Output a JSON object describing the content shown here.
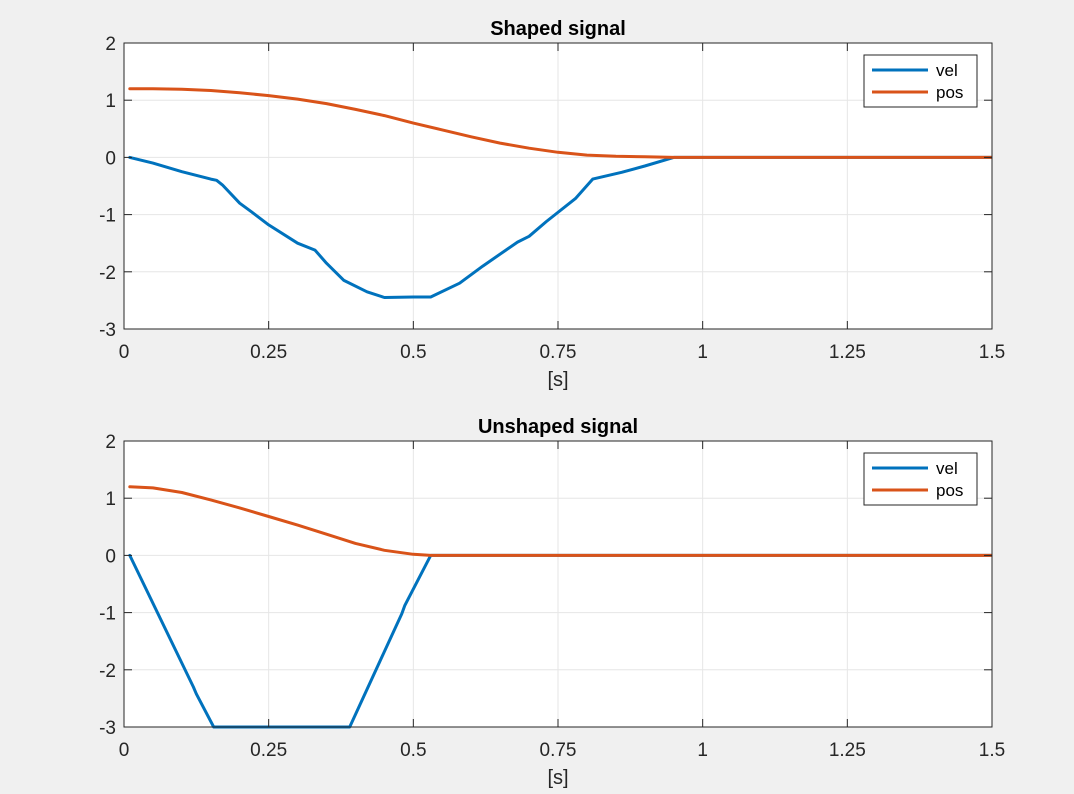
{
  "figure": {
    "background": "#f0f0f0"
  },
  "colors": {
    "vel": "#0072bd",
    "pos": "#d95319",
    "grid": "#e6e6e6",
    "axes": "#262626"
  },
  "chart_data": [
    {
      "type": "line",
      "title": "Shaped signal",
      "xlabel": "[s]",
      "ylabel": "",
      "xlim": [
        0,
        1.5
      ],
      "ylim": [
        -3,
        2
      ],
      "xticks": [
        0,
        0.25,
        0.5,
        0.75,
        1,
        1.25,
        1.5
      ],
      "xtick_labels": [
        "0",
        "0.25",
        "0.5",
        "0.75",
        "1",
        "1.25",
        "1.5"
      ],
      "yticks": [
        -3,
        -2,
        -1,
        0,
        1,
        2
      ],
      "ytick_labels": [
        "-3",
        "-2",
        "-1",
        "0",
        "1",
        "2"
      ],
      "grid": true,
      "legend": "top-right",
      "series": [
        {
          "name": "vel",
          "color": "#0072bd",
          "x": [
            0.01,
            0.05,
            0.1,
            0.15,
            0.16,
            0.17,
            0.2,
            0.22,
            0.25,
            0.3,
            0.33,
            0.35,
            0.38,
            0.42,
            0.45,
            0.5,
            0.53,
            0.58,
            0.62,
            0.66,
            0.68,
            0.7,
            0.73,
            0.78,
            0.81,
            0.86,
            0.9,
            0.95,
            0.97,
            1.0,
            1.5
          ],
          "y": [
            0.0,
            -0.1,
            -0.25,
            -0.38,
            -0.4,
            -0.48,
            -0.8,
            -0.95,
            -1.18,
            -1.5,
            -1.62,
            -1.85,
            -2.15,
            -2.35,
            -2.45,
            -2.44,
            -2.44,
            -2.2,
            -1.9,
            -1.62,
            -1.48,
            -1.38,
            -1.12,
            -0.72,
            -0.38,
            -0.26,
            -0.15,
            0.0,
            0.0,
            0.0,
            0.0
          ]
        },
        {
          "name": "pos",
          "color": "#d95319",
          "x": [
            0.01,
            0.05,
            0.1,
            0.15,
            0.2,
            0.25,
            0.3,
            0.35,
            0.4,
            0.45,
            0.5,
            0.55,
            0.6,
            0.65,
            0.7,
            0.75,
            0.8,
            0.85,
            0.9,
            0.95,
            1.0,
            1.5
          ],
          "y": [
            1.2,
            1.2,
            1.19,
            1.17,
            1.13,
            1.08,
            1.02,
            0.94,
            0.84,
            0.73,
            0.6,
            0.48,
            0.36,
            0.25,
            0.16,
            0.09,
            0.04,
            0.02,
            0.01,
            0.0,
            0.0,
            0.0
          ]
        }
      ]
    },
    {
      "type": "line",
      "title": "Unshaped signal",
      "xlabel": "[s]",
      "ylabel": "",
      "xlim": [
        0,
        1.5
      ],
      "ylim": [
        -3,
        2
      ],
      "xticks": [
        0,
        0.25,
        0.5,
        0.75,
        1,
        1.25,
        1.5
      ],
      "xtick_labels": [
        "0",
        "0.25",
        "0.5",
        "0.75",
        "1",
        "1.25",
        "1.5"
      ],
      "yticks": [
        -3,
        -2,
        -1,
        0,
        1,
        2
      ],
      "ytick_labels": [
        "-3",
        "-2",
        "-1",
        "0",
        "1",
        "2"
      ],
      "grid": true,
      "legend": "top-right",
      "series": [
        {
          "name": "vel",
          "color": "#0072bd",
          "x": [
            0.01,
            0.12,
            0.125,
            0.155,
            0.39,
            0.48,
            0.485,
            0.53,
            1.5
          ],
          "y": [
            0.0,
            -2.3,
            -2.42,
            -3.0,
            -3.0,
            -1.02,
            -0.88,
            0.0,
            0.0
          ],
          "clipped_below": -3
        },
        {
          "name": "pos",
          "color": "#d95319",
          "x": [
            0.01,
            0.05,
            0.1,
            0.15,
            0.2,
            0.25,
            0.3,
            0.35,
            0.4,
            0.45,
            0.5,
            0.53,
            1.5
          ],
          "y": [
            1.2,
            1.18,
            1.1,
            0.97,
            0.83,
            0.68,
            0.53,
            0.37,
            0.21,
            0.09,
            0.02,
            0.0,
            0.0
          ]
        }
      ]
    }
  ]
}
